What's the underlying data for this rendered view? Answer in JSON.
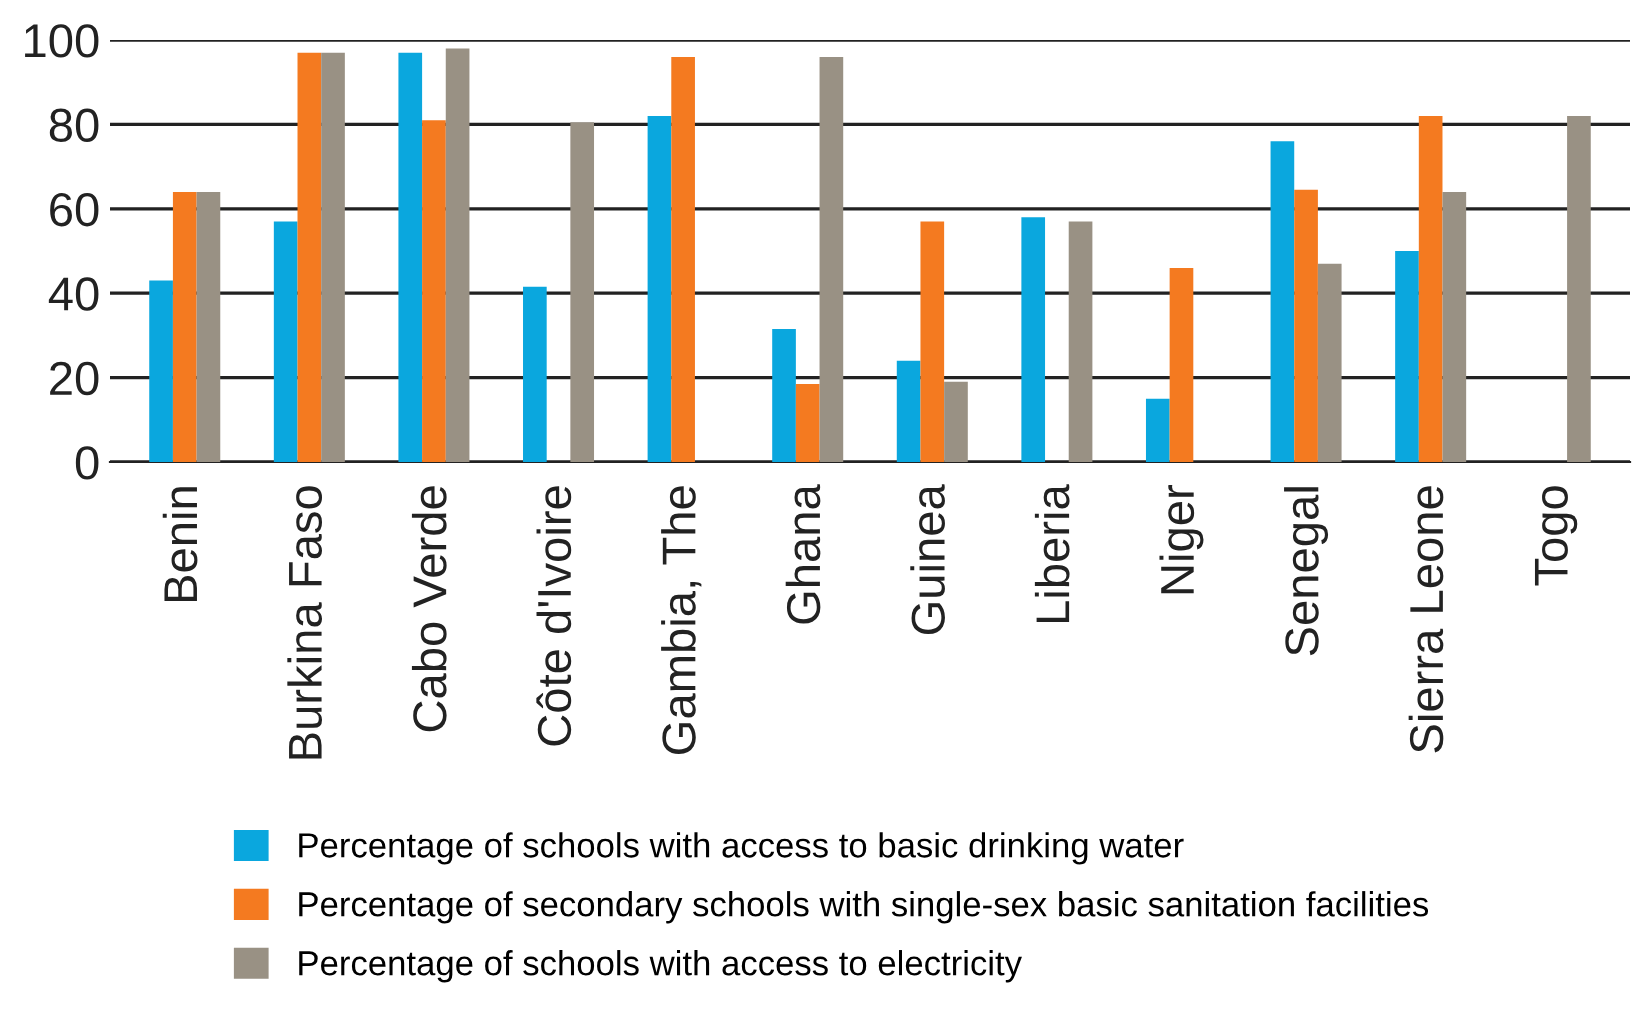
{
  "chart_data": {
    "type": "bar",
    "categories": [
      "Benin",
      "Burkina Faso",
      "Cabo Verde",
      "Côte d'Ivoire",
      "Gambia, The",
      "Ghana",
      "Guinea",
      "Liberia",
      "Niger",
      "Senegal",
      "Sierra Leone",
      "Togo"
    ],
    "series": [
      {
        "name": "Percentage of schools with access to basic drinking water",
        "color": "#0aa7de",
        "values": [
          43,
          57,
          97,
          41.5,
          82,
          31.5,
          24,
          58,
          15,
          76,
          50,
          null
        ]
      },
      {
        "name": "Percentage of secondary schools with single-sex basic sanitation facilities",
        "color": "#f47a20",
        "values": [
          64,
          97,
          81,
          null,
          96,
          18.5,
          57,
          null,
          46,
          64.5,
          82,
          null
        ]
      },
      {
        "name": "Percentage of schools with access to electricity",
        "color": "#999184",
        "values": [
          64,
          97,
          98,
          80.5,
          null,
          96,
          19,
          57,
          null,
          47,
          64,
          82
        ]
      }
    ],
    "ylim": [
      0,
      100
    ],
    "yticks": [
      0,
      20,
      40,
      60,
      80,
      100
    ],
    "grid": "y",
    "legend": "bottom"
  }
}
